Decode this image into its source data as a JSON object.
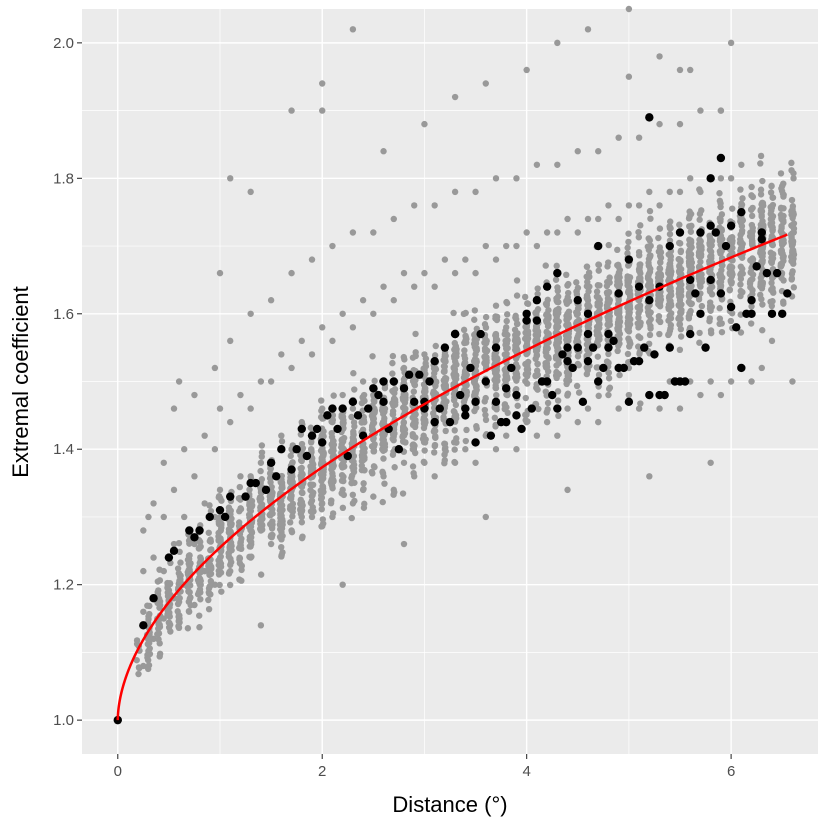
{
  "chart_data": {
    "type": "scatter",
    "title": "",
    "xlabel": "Distance (°)",
    "ylabel": "Extremal coefficient",
    "xlim": [
      -0.35,
      6.85
    ],
    "ylim": [
      0.95,
      2.05
    ],
    "xticks": [
      0,
      2,
      4,
      6
    ],
    "yticks": [
      1.0,
      1.2,
      1.4,
      1.6,
      1.8,
      2.0
    ],
    "ytick_labels": [
      "1.0",
      "1.2",
      "1.4",
      "1.6",
      "1.8",
      "2.0"
    ],
    "grid": true,
    "legend": "none",
    "colors": {
      "panel": "#ebebeb",
      "grid": "#ffffff",
      "pairwise_points": "#999999",
      "binned_points": "#000000",
      "fit_line": "#ff0000"
    },
    "series": [
      {
        "kind": "pairwise",
        "description_visible": false,
        "approx_trend": "y ≈ 1 + 0.255 * x^0.55 with spread ± 0.15",
        "x": [
          0.25,
          0.25,
          0.25,
          0.25,
          0.35,
          0.35,
          0.35,
          0.45,
          0.45,
          0.45,
          0.45,
          0.55,
          0.55,
          0.55,
          0.55,
          0.65,
          0.65,
          0.65,
          0.75,
          0.75,
          0.75,
          0.75,
          0.85,
          0.85,
          0.85,
          0.95,
          0.95,
          0.95,
          0.95,
          1.0,
          1.0,
          1.0,
          1.1,
          1.1,
          1.1,
          1.1,
          1.2,
          1.2,
          1.2,
          1.3,
          1.3,
          1.3,
          1.3,
          1.4,
          1.4,
          1.4,
          1.5,
          1.5,
          1.5,
          1.5,
          1.6,
          1.6,
          1.6,
          1.7,
          1.7,
          1.7,
          1.7,
          1.8,
          1.8,
          1.8,
          1.9,
          1.9,
          1.9,
          1.9,
          2.0,
          2.0,
          2.0,
          2.1,
          2.1,
          2.1,
          2.1,
          2.2,
          2.2,
          2.2,
          2.3,
          2.3,
          2.3,
          2.3,
          2.4,
          2.4,
          2.4,
          2.5,
          2.5,
          2.5,
          2.5,
          2.6,
          2.6,
          2.6,
          2.7,
          2.7,
          2.7,
          2.7,
          2.8,
          2.8,
          2.8,
          2.9,
          2.9,
          2.9,
          2.9,
          3.0,
          3.0,
          3.0,
          3.1,
          3.1,
          3.1,
          3.1,
          3.2,
          3.2,
          3.2,
          3.3,
          3.3,
          3.3,
          3.3,
          3.4,
          3.4,
          3.4,
          3.5,
          3.5,
          3.5,
          3.5,
          3.6,
          3.6,
          3.6,
          3.7,
          3.7,
          3.7,
          3.7,
          3.8,
          3.8,
          3.8,
          3.9,
          3.9,
          3.9,
          3.9,
          4.0,
          4.0,
          4.0,
          4.1,
          4.1,
          4.1,
          4.1,
          4.2,
          4.2,
          4.2,
          4.3,
          4.3,
          4.3,
          4.3,
          4.4,
          4.4,
          4.4,
          4.5,
          4.5,
          4.5,
          4.5,
          4.6,
          4.6,
          4.6,
          4.7,
          4.7,
          4.7,
          4.7,
          4.8,
          4.8,
          4.8,
          4.9,
          4.9,
          4.9,
          4.9,
          5.0,
          5.0,
          5.0,
          5.1,
          5.1,
          5.1,
          5.1,
          5.2,
          5.2,
          5.2,
          5.3,
          5.3,
          5.3,
          5.3,
          5.4,
          5.4,
          5.4,
          5.5,
          5.5,
          5.5,
          5.5,
          5.6,
          5.6,
          5.6,
          5.7,
          5.7,
          5.7,
          5.7,
          5.8,
          5.8,
          5.8,
          5.9,
          5.9,
          5.9,
          5.9,
          6.0,
          6.0,
          6.0,
          6.1,
          6.1,
          6.1,
          6.2,
          6.2,
          6.3,
          6.3,
          6.4,
          6.5,
          6.6,
          0.3,
          0.6,
          1.0,
          1.3,
          1.7,
          2.0,
          2.3,
          2.6,
          3.0,
          3.3,
          3.6,
          4.0,
          4.3,
          4.6,
          5.0,
          5.3,
          5.6,
          6.0,
          2.2,
          2.8,
          3.6,
          4.4,
          5.2,
          5.8,
          1.4,
          1.1,
          2.0,
          5.0,
          5.5,
          5.9
        ],
        "y": [
          1.08,
          1.16,
          1.22,
          1.28,
          1.12,
          1.24,
          1.32,
          1.15,
          1.22,
          1.3,
          1.38,
          1.18,
          1.26,
          1.34,
          1.46,
          1.2,
          1.3,
          1.4,
          1.17,
          1.26,
          1.36,
          1.48,
          1.22,
          1.32,
          1.42,
          1.2,
          1.3,
          1.4,
          1.52,
          1.24,
          1.34,
          1.46,
          1.22,
          1.33,
          1.44,
          1.56,
          1.26,
          1.36,
          1.48,
          1.24,
          1.36,
          1.46,
          1.6,
          1.28,
          1.38,
          1.5,
          1.26,
          1.38,
          1.5,
          1.62,
          1.3,
          1.42,
          1.54,
          1.28,
          1.4,
          1.52,
          1.66,
          1.3,
          1.44,
          1.56,
          1.3,
          1.42,
          1.54,
          1.68,
          1.32,
          1.46,
          1.58,
          1.3,
          1.44,
          1.56,
          1.7,
          1.34,
          1.48,
          1.6,
          1.32,
          1.46,
          1.58,
          1.72,
          1.34,
          1.5,
          1.62,
          1.33,
          1.48,
          1.6,
          1.72,
          1.36,
          1.5,
          1.64,
          1.34,
          1.5,
          1.62,
          1.74,
          1.38,
          1.52,
          1.66,
          1.36,
          1.5,
          1.64,
          1.76,
          1.38,
          1.54,
          1.66,
          1.36,
          1.52,
          1.64,
          1.76,
          1.4,
          1.54,
          1.68,
          1.38,
          1.54,
          1.66,
          1.78,
          1.4,
          1.56,
          1.68,
          1.38,
          1.54,
          1.66,
          1.78,
          1.42,
          1.56,
          1.7,
          1.4,
          1.56,
          1.68,
          1.8,
          1.42,
          1.58,
          1.7,
          1.4,
          1.56,
          1.7,
          1.8,
          1.44,
          1.58,
          1.72,
          1.42,
          1.58,
          1.7,
          1.82,
          1.44,
          1.6,
          1.72,
          1.42,
          1.58,
          1.72,
          1.82,
          1.46,
          1.6,
          1.74,
          1.44,
          1.6,
          1.72,
          1.84,
          1.46,
          1.62,
          1.74,
          1.44,
          1.6,
          1.74,
          1.84,
          1.48,
          1.62,
          1.76,
          1.46,
          1.62,
          1.74,
          1.86,
          1.48,
          1.64,
          1.76,
          1.46,
          1.62,
          1.76,
          1.86,
          1.48,
          1.64,
          1.78,
          1.46,
          1.62,
          1.76,
          1.88,
          1.5,
          1.64,
          1.78,
          1.46,
          1.62,
          1.78,
          1.88,
          1.5,
          1.66,
          1.8,
          1.48,
          1.64,
          1.78,
          1.9,
          1.5,
          1.66,
          1.8,
          1.48,
          1.64,
          1.8,
          1.9,
          1.5,
          1.66,
          1.8,
          1.52,
          1.66,
          1.82,
          1.5,
          1.68,
          1.52,
          1.7,
          1.56,
          1.6,
          1.5,
          1.3,
          1.5,
          1.66,
          1.78,
          1.9,
          1.94,
          2.02,
          1.84,
          1.88,
          1.92,
          1.94,
          1.96,
          2.0,
          2.02,
          2.05,
          1.98,
          1.96,
          2.0,
          1.2,
          1.26,
          1.3,
          1.34,
          1.36,
          1.38,
          1.14,
          1.8,
          1.9,
          1.95,
          1.96,
          1.9
        ]
      },
      {
        "kind": "binned",
        "x": [
          0.0,
          0.25,
          0.35,
          0.5,
          0.55,
          0.7,
          0.75,
          0.8,
          0.9,
          1.0,
          1.05,
          1.1,
          1.25,
          1.3,
          1.35,
          1.45,
          1.5,
          1.55,
          1.6,
          1.7,
          1.75,
          1.8,
          1.85,
          1.9,
          1.95,
          2.0,
          2.05,
          2.1,
          2.15,
          2.2,
          2.25,
          2.3,
          2.35,
          2.4,
          2.45,
          2.5,
          2.55,
          2.6,
          2.65,
          2.7,
          2.75,
          2.8,
          2.85,
          2.9,
          2.95,
          3.0,
          3.05,
          3.1,
          3.15,
          3.2,
          3.25,
          3.3,
          3.35,
          3.4,
          3.45,
          3.5,
          3.55,
          3.6,
          3.65,
          3.7,
          3.75,
          3.8,
          3.85,
          3.9,
          3.95,
          4.0,
          4.05,
          4.1,
          4.15,
          4.2,
          4.25,
          4.3,
          4.35,
          4.4,
          4.45,
          4.5,
          4.55,
          4.6,
          4.65,
          4.7,
          4.75,
          4.8,
          4.85,
          4.9,
          4.95,
          5.0,
          5.05,
          5.1,
          5.15,
          5.2,
          5.25,
          5.3,
          5.35,
          5.4,
          5.45,
          5.5,
          5.55,
          5.6,
          5.65,
          5.7,
          5.75,
          5.8,
          5.85,
          5.9,
          5.95,
          6.0,
          6.05,
          6.1,
          6.15,
          6.2,
          6.25,
          6.3,
          6.35,
          6.4,
          6.45,
          6.5,
          6.55,
          3.1,
          3.5,
          3.9,
          4.3,
          4.7,
          5.1,
          5.5,
          5.9,
          6.1,
          3.3,
          3.7,
          4.1,
          4.5,
          4.9,
          5.3,
          5.7,
          6.3,
          2.6,
          3.0,
          3.4,
          3.8,
          4.2,
          4.6,
          5.0,
          5.4,
          5.8,
          4.4,
          4.8,
          5.2,
          5.6,
          6.0,
          4.0,
          4.6,
          5.2,
          5.8,
          6.2
        ],
        "y": [
          1.0,
          1.14,
          1.18,
          1.24,
          1.25,
          1.28,
          1.27,
          1.28,
          1.3,
          1.31,
          1.3,
          1.33,
          1.33,
          1.35,
          1.35,
          1.34,
          1.38,
          1.36,
          1.4,
          1.37,
          1.4,
          1.43,
          1.39,
          1.42,
          1.43,
          1.41,
          1.45,
          1.46,
          1.43,
          1.46,
          1.39,
          1.47,
          1.45,
          1.42,
          1.46,
          1.49,
          1.48,
          1.5,
          1.43,
          1.5,
          1.4,
          1.49,
          1.51,
          1.47,
          1.51,
          1.47,
          1.5,
          1.53,
          1.46,
          1.55,
          1.44,
          1.57,
          1.48,
          1.46,
          1.52,
          1.47,
          1.57,
          1.5,
          1.42,
          1.55,
          1.44,
          1.49,
          1.52,
          1.48,
          1.43,
          1.6,
          1.46,
          1.62,
          1.5,
          1.64,
          1.48,
          1.66,
          1.54,
          1.55,
          1.52,
          1.62,
          1.47,
          1.6,
          1.55,
          1.7,
          1.52,
          1.57,
          1.56,
          1.63,
          1.52,
          1.68,
          1.53,
          1.64,
          1.55,
          1.89,
          1.54,
          1.64,
          1.48,
          1.7,
          1.5,
          1.72,
          1.5,
          1.65,
          1.63,
          1.72,
          1.55,
          1.8,
          1.72,
          1.83,
          1.7,
          1.73,
          1.58,
          1.75,
          1.6,
          1.62,
          1.67,
          1.72,
          1.66,
          1.6,
          1.66,
          1.6,
          1.63,
          1.44,
          1.41,
          1.45,
          1.46,
          1.5,
          1.53,
          1.5,
          1.63,
          1.52,
          1.57,
          1.47,
          1.59,
          1.55,
          1.52,
          1.48,
          1.6,
          1.71,
          1.47,
          1.46,
          1.45,
          1.44,
          1.5,
          1.53,
          1.47,
          1.55,
          1.73,
          1.53,
          1.55,
          1.62,
          1.57,
          1.61,
          1.59,
          1.57,
          1.48,
          1.65,
          1.6
        ]
      },
      {
        "kind": "fit",
        "model": "y = 1 + 0.255 * x^0.55",
        "x_range": [
          0,
          6.55
        ]
      }
    ]
  }
}
